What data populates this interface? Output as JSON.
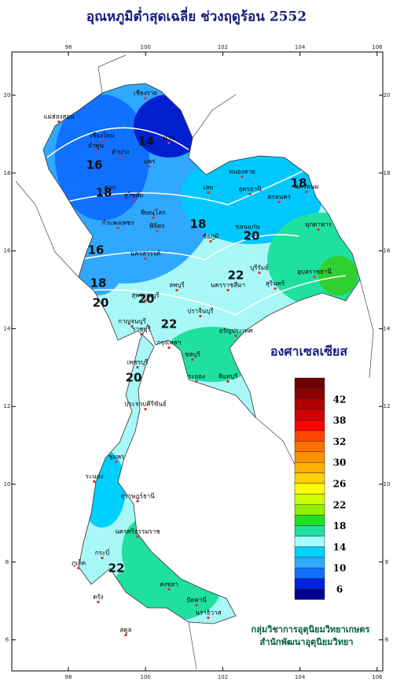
{
  "title": "อุณหภูมิต่ำสุดเฉลี่ย ช่วงฤดูร้อน 2552",
  "map": {
    "lon_ticks": [
      98,
      100,
      102,
      104,
      106
    ],
    "lat_ticks": [
      20,
      18,
      16,
      14,
      12,
      10,
      8,
      6
    ],
    "places": [
      "เชียงราย",
      "แม่ฮ่องสอน",
      "เชียงใหม่",
      "ลำพูน",
      "ลำปาง",
      "น่าน",
      "แพร่",
      "ตาก",
      "สุโขทัย",
      "พิษณุโลก",
      "กำแพงเพชร",
      "พิจิตร",
      "หนองคาย",
      "อุดรธานี",
      "นครพนม",
      "สกลนคร",
      "มุกดาหาร",
      "เลย",
      "ขอนแก่น",
      "ชัยภูมิ",
      "นครสวรรค์",
      "ลพบุรี",
      "นครราชสีมา",
      "สุรินทร์",
      "อุบลราชธานี",
      "บุรีรัมย์",
      "กาญจนบุรี",
      "สุพรรณบุรี",
      "กรุงเทพฯ",
      "ปราจีนบุรี",
      "อรัญประเทศ",
      "ชลบุรี",
      "ระยอง",
      "จันทบุรี",
      "ราชบุรี",
      "เพชรบุรี",
      "ประจวบคีรีขันธ์",
      "ชุมพร",
      "ระนอง",
      "สุราษฎร์ธานี",
      "นครศรีธรรมราช",
      "ภูเก็ต",
      "กระบี่",
      "ตรัง",
      "สงขลา",
      "ปัตตานี",
      "นราธิวาส",
      "สตูล"
    ],
    "contour_labels": [
      14,
      16,
      18,
      18,
      18,
      20,
      22,
      16,
      18,
      20,
      20,
      22,
      20,
      22
    ]
  },
  "legend": {
    "title": "องศาเซลเซียส",
    "colors": [
      "#6b0000",
      "#8b0000",
      "#b00000",
      "#d40000",
      "#ff0000",
      "#ff4500",
      "#ff7000",
      "#ff9000",
      "#ffb000",
      "#ffd000",
      "#ffff00",
      "#d0ff00",
      "#90ee00",
      "#20e020",
      "#20e0a0",
      "#a0ffff",
      "#00d0ff",
      "#30a8ff",
      "#1070ff",
      "#0020e0",
      "#000090"
    ],
    "labels": [
      42,
      38,
      32,
      30,
      26,
      22,
      18,
      14,
      10,
      6
    ]
  },
  "footer": [
    "กลุ่มวิชาการอุตุนิยมวิทยาเกษตร",
    "สำนักพัฒนาอุตุนิยมวิทยา"
  ]
}
